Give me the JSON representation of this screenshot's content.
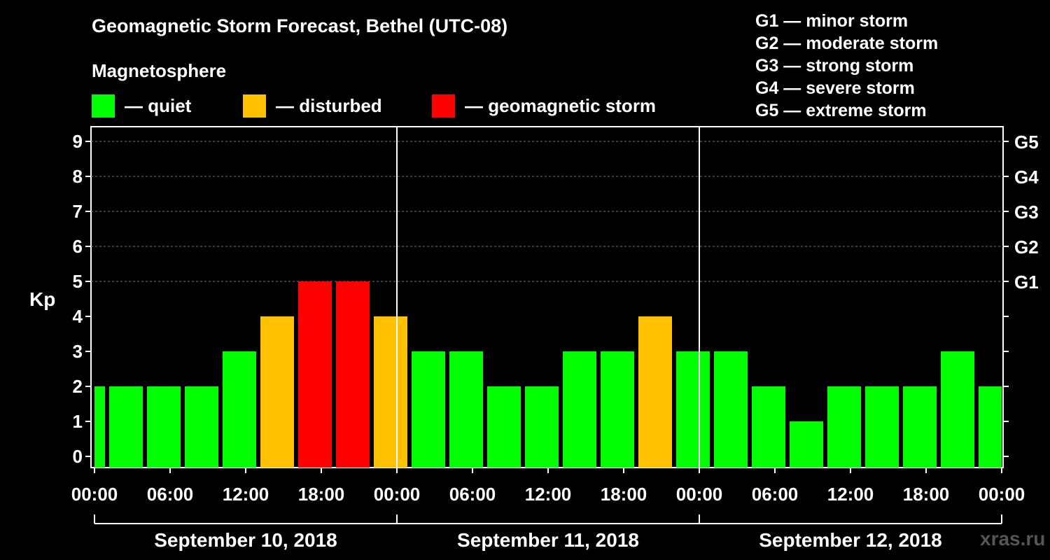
{
  "header": {
    "title": "Geomagnetic Storm Forecast, Bethel (UTC-08)",
    "subtitle": "Magnetosphere"
  },
  "legend": [
    {
      "label": "— quiet",
      "color": "#00ff00"
    },
    {
      "label": "— disturbed",
      "color": "#ffc000"
    },
    {
      "label": "— geomagnetic storm",
      "color": "#ff0000"
    }
  ],
  "g_scale": [
    {
      "text": "G1 — minor storm"
    },
    {
      "text": "G2 — moderate storm"
    },
    {
      "text": "G3 — strong storm"
    },
    {
      "text": "G4 — severe storm"
    },
    {
      "text": "G5 — extreme storm"
    }
  ],
  "watermark": "xras.ru",
  "chart_data": {
    "type": "bar",
    "ylabel": "Kp",
    "ylim": [
      0,
      9
    ],
    "y_ticks": [
      0,
      1,
      2,
      3,
      4,
      5,
      6,
      7,
      8,
      9
    ],
    "right_axis_labels": [
      {
        "kp": 5,
        "label": "G1"
      },
      {
        "kp": 6,
        "label": "G2"
      },
      {
        "kp": 7,
        "label": "G3"
      },
      {
        "kp": 8,
        "label": "G4"
      },
      {
        "kp": 9,
        "label": "G5"
      }
    ],
    "x_tick_labels": [
      "00:00",
      "06:00",
      "12:00",
      "18:00",
      "00:00",
      "06:00",
      "12:00",
      "18:00",
      "00:00",
      "06:00",
      "12:00",
      "18:00",
      "00:00"
    ],
    "day_labels": [
      "September 10, 2018",
      "September 11, 2018",
      "September 12, 2018"
    ],
    "grid": true,
    "colors": {
      "quiet": "#00ff00",
      "disturbed": "#ffc000",
      "storm": "#ff0000"
    },
    "bars": [
      {
        "start_hour": 0,
        "end_hour": 1,
        "kp": 2
      },
      {
        "start_hour": 1,
        "end_hour": 4,
        "kp": 2
      },
      {
        "start_hour": 4,
        "end_hour": 7,
        "kp": 2
      },
      {
        "start_hour": 7,
        "end_hour": 10,
        "kp": 2
      },
      {
        "start_hour": 10,
        "end_hour": 13,
        "kp": 3
      },
      {
        "start_hour": 13,
        "end_hour": 16,
        "kp": 4
      },
      {
        "start_hour": 16,
        "end_hour": 19,
        "kp": 5
      },
      {
        "start_hour": 19,
        "end_hour": 22,
        "kp": 5
      },
      {
        "start_hour": 22,
        "end_hour": 25,
        "kp": 4
      },
      {
        "start_hour": 25,
        "end_hour": 28,
        "kp": 3
      },
      {
        "start_hour": 28,
        "end_hour": 31,
        "kp": 3
      },
      {
        "start_hour": 31,
        "end_hour": 34,
        "kp": 2
      },
      {
        "start_hour": 34,
        "end_hour": 37,
        "kp": 2
      },
      {
        "start_hour": 37,
        "end_hour": 40,
        "kp": 3
      },
      {
        "start_hour": 40,
        "end_hour": 43,
        "kp": 3
      },
      {
        "start_hour": 43,
        "end_hour": 46,
        "kp": 4
      },
      {
        "start_hour": 46,
        "end_hour": 49,
        "kp": 3
      },
      {
        "start_hour": 49,
        "end_hour": 52,
        "kp": 3
      },
      {
        "start_hour": 52,
        "end_hour": 55,
        "kp": 2
      },
      {
        "start_hour": 55,
        "end_hour": 58,
        "kp": 1
      },
      {
        "start_hour": 58,
        "end_hour": 61,
        "kp": 2
      },
      {
        "start_hour": 61,
        "end_hour": 64,
        "kp": 2
      },
      {
        "start_hour": 64,
        "end_hour": 67,
        "kp": 2
      },
      {
        "start_hour": 67,
        "end_hour": 70,
        "kp": 3
      },
      {
        "start_hour": 70,
        "end_hour": 72,
        "kp": 2
      }
    ]
  }
}
